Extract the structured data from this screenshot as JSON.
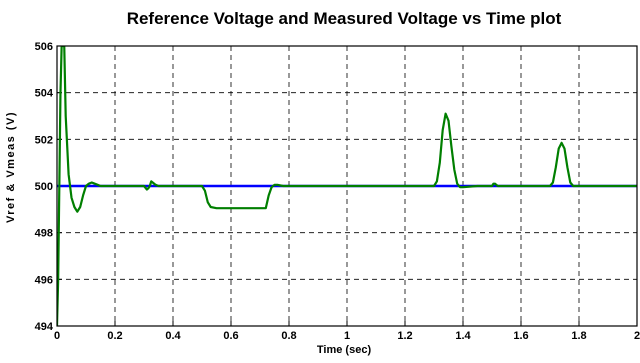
{
  "chart_data": {
    "type": "line",
    "title": "Reference Voltage and Measured Voltage vs Time plot",
    "xlabel": "Time (sec)",
    "ylabel": "Vref & Vmeas (V)",
    "xlim": [
      0,
      2
    ],
    "ylim": [
      494,
      506
    ],
    "x_ticks": [
      "0",
      "0.2",
      "0.4",
      "0.6",
      "0.8",
      "1",
      "1.2",
      "1.4",
      "1.6",
      "1.8",
      "2"
    ],
    "y_ticks": [
      "494",
      "496",
      "498",
      "500",
      "502",
      "504",
      "506"
    ],
    "grid": true,
    "grid_style": "dashed",
    "series": [
      {
        "color": "#0000ff",
        "x": [
          0,
          2
        ],
        "y": [
          500,
          500
        ]
      },
      {
        "color": "#007f00",
        "x": [
          0.0,
          0.004,
          0.008,
          0.012,
          0.016,
          0.02,
          0.025,
          0.03,
          0.04,
          0.05,
          0.06,
          0.07,
          0.08,
          0.09,
          0.1,
          0.11,
          0.12,
          0.13,
          0.14,
          0.15,
          0.16,
          0.2,
          0.3,
          0.31,
          0.315,
          0.32,
          0.325,
          0.33,
          0.34,
          0.35,
          0.36,
          0.5,
          0.51,
          0.52,
          0.53,
          0.55,
          0.6,
          0.65,
          0.7,
          0.72,
          0.73,
          0.74,
          0.75,
          0.76,
          0.78,
          0.8,
          1.3,
          1.31,
          1.32,
          1.33,
          1.34,
          1.35,
          1.36,
          1.37,
          1.38,
          1.39,
          1.4,
          1.45,
          1.5,
          1.505,
          1.51,
          1.515,
          1.52,
          1.7,
          1.71,
          1.72,
          1.73,
          1.74,
          1.75,
          1.76,
          1.77,
          1.78,
          2.0
        ],
        "y": [
          494.0,
          496.0,
          500.0,
          504.0,
          506.0,
          506.0,
          506.0,
          503.0,
          500.5,
          499.5,
          499.1,
          498.9,
          499.1,
          499.6,
          500.0,
          500.1,
          500.15,
          500.1,
          500.05,
          500.0,
          500.0,
          500.0,
          500.0,
          499.85,
          499.9,
          500.0,
          500.2,
          500.15,
          500.05,
          500.0,
          500.0,
          500.0,
          499.8,
          499.3,
          499.1,
          499.05,
          499.05,
          499.05,
          499.05,
          499.05,
          499.6,
          499.95,
          500.05,
          500.05,
          500.0,
          500.0,
          500.0,
          500.2,
          501.0,
          502.4,
          503.1,
          502.8,
          501.7,
          500.7,
          500.1,
          499.95,
          499.95,
          500.0,
          500.0,
          500.1,
          500.1,
          500.05,
          500.0,
          500.0,
          500.15,
          500.8,
          501.6,
          501.85,
          501.6,
          500.8,
          500.15,
          500.0,
          500.0
        ]
      }
    ]
  }
}
